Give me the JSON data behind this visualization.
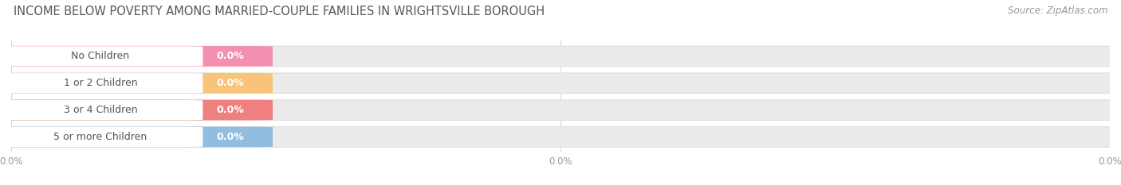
{
  "title": "INCOME BELOW POVERTY AMONG MARRIED-COUPLE FAMILIES IN WRIGHTSVILLE BOROUGH",
  "source": "Source: ZipAtlas.com",
  "categories": [
    "No Children",
    "1 or 2 Children",
    "3 or 4 Children",
    "5 or more Children"
  ],
  "values": [
    0.0,
    0.0,
    0.0,
    0.0
  ],
  "bar_colors": [
    "#f48fb1",
    "#f9c47a",
    "#f08080",
    "#90bde0"
  ],
  "title_fontsize": 10.5,
  "source_fontsize": 8.5,
  "bar_label_fontsize": 9,
  "bar_value_fontsize": 9,
  "background_color": "#ffffff",
  "bar_bg_color": "#ebebeb",
  "bar_bg_edge_color": "#d8d8d8",
  "label_text_color": "#555555",
  "value_text_color": "#ffffff",
  "grid_color": "#cccccc",
  "tick_color": "#999999",
  "title_color": "#555555",
  "source_color": "#999999"
}
